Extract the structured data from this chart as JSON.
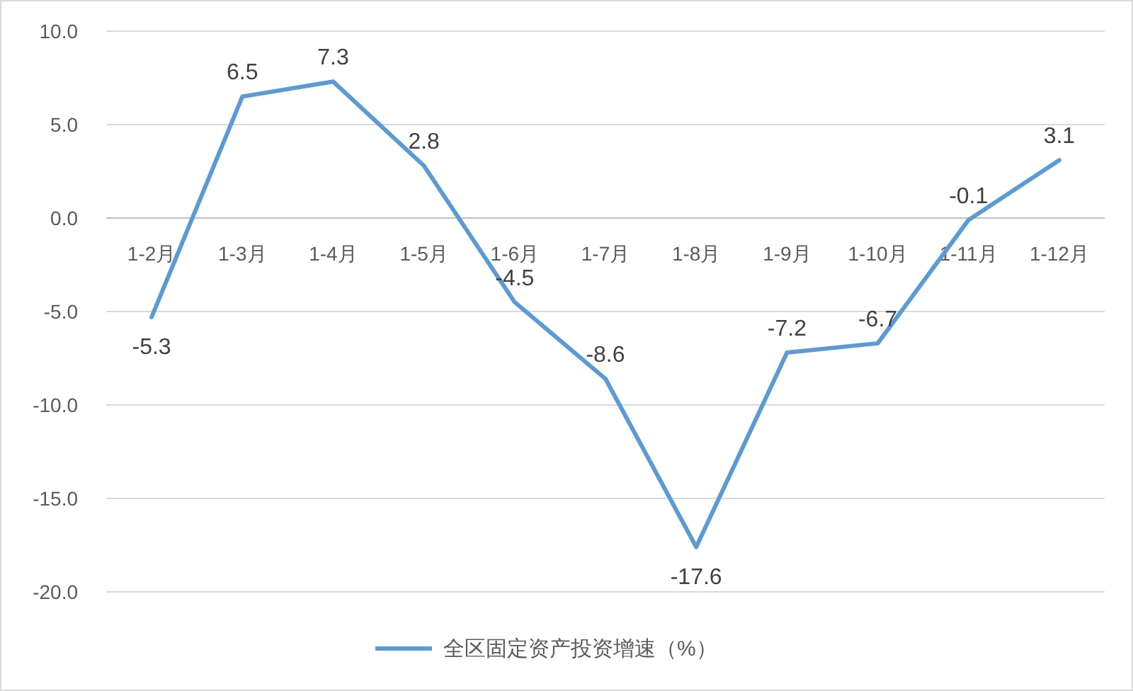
{
  "chart_data": {
    "type": "line",
    "categories": [
      "1-2月",
      "1-3月",
      "1-4月",
      "1-5月",
      "1-6月",
      "1-7月",
      "1-8月",
      "1-9月",
      "1-10月",
      "1-11月",
      "1-12月"
    ],
    "series": [
      {
        "name": "全区固定资产投资增速（%）",
        "color": "#5b9bd5",
        "values": [
          -5.3,
          6.5,
          7.3,
          2.8,
          -4.5,
          -8.6,
          -17.6,
          -7.2,
          -6.7,
          -0.1,
          3.1
        ]
      }
    ],
    "ylim": [
      -20,
      10
    ],
    "yticks": [
      {
        "value": -20,
        "label": "-20.0"
      },
      {
        "value": -15,
        "label": "-15.0"
      },
      {
        "value": -10,
        "label": "-10.0"
      },
      {
        "value": -5,
        "label": "-5.0"
      },
      {
        "value": 0,
        "label": "0.0"
      },
      {
        "value": 5,
        "label": "5.0"
      },
      {
        "value": 10,
        "label": "10.0"
      }
    ],
    "grid": "y",
    "legend": "bottom",
    "data_labels": true,
    "marker": "none",
    "line_style": "solid"
  }
}
